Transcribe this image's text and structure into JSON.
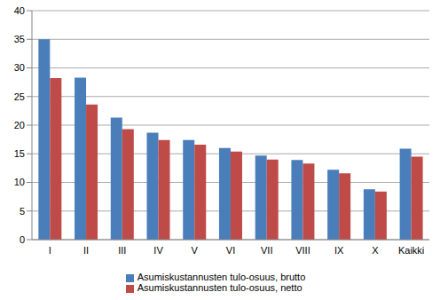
{
  "chart_data": {
    "type": "bar",
    "categories": [
      "I",
      "II",
      "III",
      "IV",
      "V",
      "VI",
      "VII",
      "VIII",
      "IX",
      "X",
      "Kaikki"
    ],
    "series": [
      {
        "name": "Asumiskustannusten tulo-osuus, brutto",
        "color": "#4a7ebb",
        "values": [
          35.0,
          28.3,
          21.3,
          18.7,
          17.4,
          16.0,
          14.7,
          13.9,
          12.2,
          8.8,
          15.9
        ]
      },
      {
        "name": "Asumiskustannusten tulo-osuus, netto",
        "color": "#be4b48",
        "values": [
          28.2,
          23.6,
          19.3,
          17.4,
          16.6,
          15.4,
          14.0,
          13.3,
          11.6,
          8.4,
          14.5
        ]
      }
    ],
    "ylim": [
      0,
      40
    ],
    "yticks": [
      0,
      5,
      10,
      15,
      20,
      25,
      30,
      35,
      40
    ],
    "grid": true,
    "legend": "bottom"
  }
}
